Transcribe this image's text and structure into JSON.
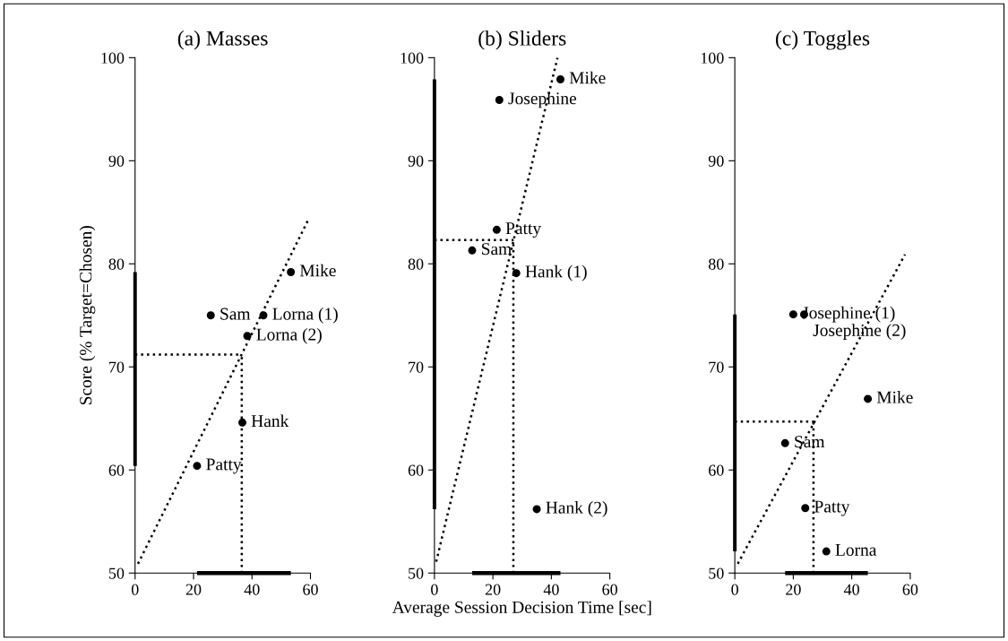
{
  "chart_data": [
    {
      "type": "scatter",
      "title": "(a) Masses",
      "ylabel": "Score (% Target=Chosen)",
      "xlim": [
        0,
        60
      ],
      "ylim": [
        50,
        100
      ],
      "xticks": [
        0,
        20,
        40,
        60
      ],
      "yticks": [
        50,
        60,
        70,
        80,
        90,
        100
      ],
      "grid": false,
      "series": [
        {
          "type": "scatter",
          "marker": "circle",
          "color": "#000000",
          "x": [
            53.3,
            25.9,
            43.9,
            38.4,
            36.7,
            21.2
          ],
          "values": [
            79.2,
            75.0,
            75.0,
            73.0,
            64.6,
            60.4
          ]
        },
        {
          "type": "line",
          "color": "#000000",
          "line_style": "dotted",
          "x": [
            1.0,
            59.3
          ],
          "values": [
            50.9,
            84.3
          ]
        }
      ],
      "ref_lines": [
        {
          "axis": "x",
          "value": 36.5,
          "line_style": "dotted"
        },
        {
          "axis": "y",
          "value": 71.2,
          "line_style": "dotted"
        }
      ],
      "annotations": [
        {
          "text": "Mike",
          "x": 53.3,
          "y": 79.2
        },
        {
          "text": "Sam",
          "x": 25.9,
          "y": 75.0
        },
        {
          "text": "Lorna (1)",
          "x": 43.9,
          "y": 75.0
        },
        {
          "text": "Lorna (2)",
          "x": 38.4,
          "y": 73.0
        },
        {
          "text": "Hank",
          "x": 36.7,
          "y": 64.6
        },
        {
          "text": "Patty",
          "x": 21.2,
          "y": 60.4
        }
      ]
    },
    {
      "type": "scatter",
      "title": "(b) Sliders",
      "xlabel": "Average Session Decision Time [sec]",
      "xlim": [
        0,
        60
      ],
      "ylim": [
        50,
        100
      ],
      "xticks": [
        0,
        20,
        40,
        60
      ],
      "yticks": [
        50,
        60,
        70,
        80,
        90,
        100
      ],
      "grid": false,
      "series": [
        {
          "type": "scatter",
          "marker": "circle",
          "color": "#000000",
          "x": [
            43.1,
            22.2,
            21.3,
            12.9,
            28.0,
            35.0
          ],
          "values": [
            97.9,
            95.9,
            83.3,
            81.3,
            79.1,
            56.2
          ]
        },
        {
          "type": "line",
          "color": "#000000",
          "line_style": "dotted",
          "x": [
            0.6,
            42.1
          ],
          "values": [
            51.1,
            100
          ]
        }
      ],
      "ref_lines": [
        {
          "axis": "x",
          "value": 27.0,
          "line_style": "dotted"
        },
        {
          "axis": "y",
          "value": 82.3,
          "line_style": "dotted"
        }
      ],
      "annotations": [
        {
          "text": "Mike",
          "x": 43.1,
          "y": 97.9
        },
        {
          "text": "Josephine",
          "x": 22.2,
          "y": 95.9
        },
        {
          "text": "Patty",
          "x": 21.3,
          "y": 83.3
        },
        {
          "text": "Sam",
          "x": 12.9,
          "y": 81.3
        },
        {
          "text": "Hank (1)",
          "x": 28.0,
          "y": 79.1
        },
        {
          "text": "Hank (2)",
          "x": 35.0,
          "y": 56.2
        }
      ]
    },
    {
      "type": "scatter",
      "title": "(c) Toggles",
      "xlim": [
        0,
        60
      ],
      "ylim": [
        50,
        100
      ],
      "xticks": [
        0,
        20,
        40,
        60
      ],
      "yticks": [
        50,
        60,
        70,
        80,
        90,
        100
      ],
      "grid": false,
      "series": [
        {
          "type": "scatter",
          "marker": "circle",
          "color": "#000000",
          "x": [
            20.0,
            23.7,
            45.5,
            17.2,
            24.1,
            31.3
          ],
          "values": [
            75.1,
            75.1,
            66.9,
            62.6,
            56.3,
            52.1
          ]
        },
        {
          "type": "line",
          "color": "#000000",
          "line_style": "dotted",
          "x": [
            1.0,
            58.2
          ],
          "values": [
            50.9,
            80.9
          ]
        }
      ],
      "ref_lines": [
        {
          "axis": "x",
          "value": 26.9,
          "line_style": "dotted"
        },
        {
          "axis": "y",
          "value": 64.7,
          "line_style": "dotted"
        }
      ],
      "annotations": [
        {
          "text": "Josephine (1)",
          "x": 20.0,
          "y": 75.1
        },
        {
          "text": "Josephine (2)",
          "x": 23.7,
          "y": 75.1
        },
        {
          "text": "Mike",
          "x": 45.5,
          "y": 66.9
        },
        {
          "text": "Sam",
          "x": 17.2,
          "y": 62.6
        },
        {
          "text": "Patty",
          "x": 24.1,
          "y": 56.3
        },
        {
          "text": "Lorna",
          "x": 31.3,
          "y": 52.1
        }
      ]
    }
  ]
}
